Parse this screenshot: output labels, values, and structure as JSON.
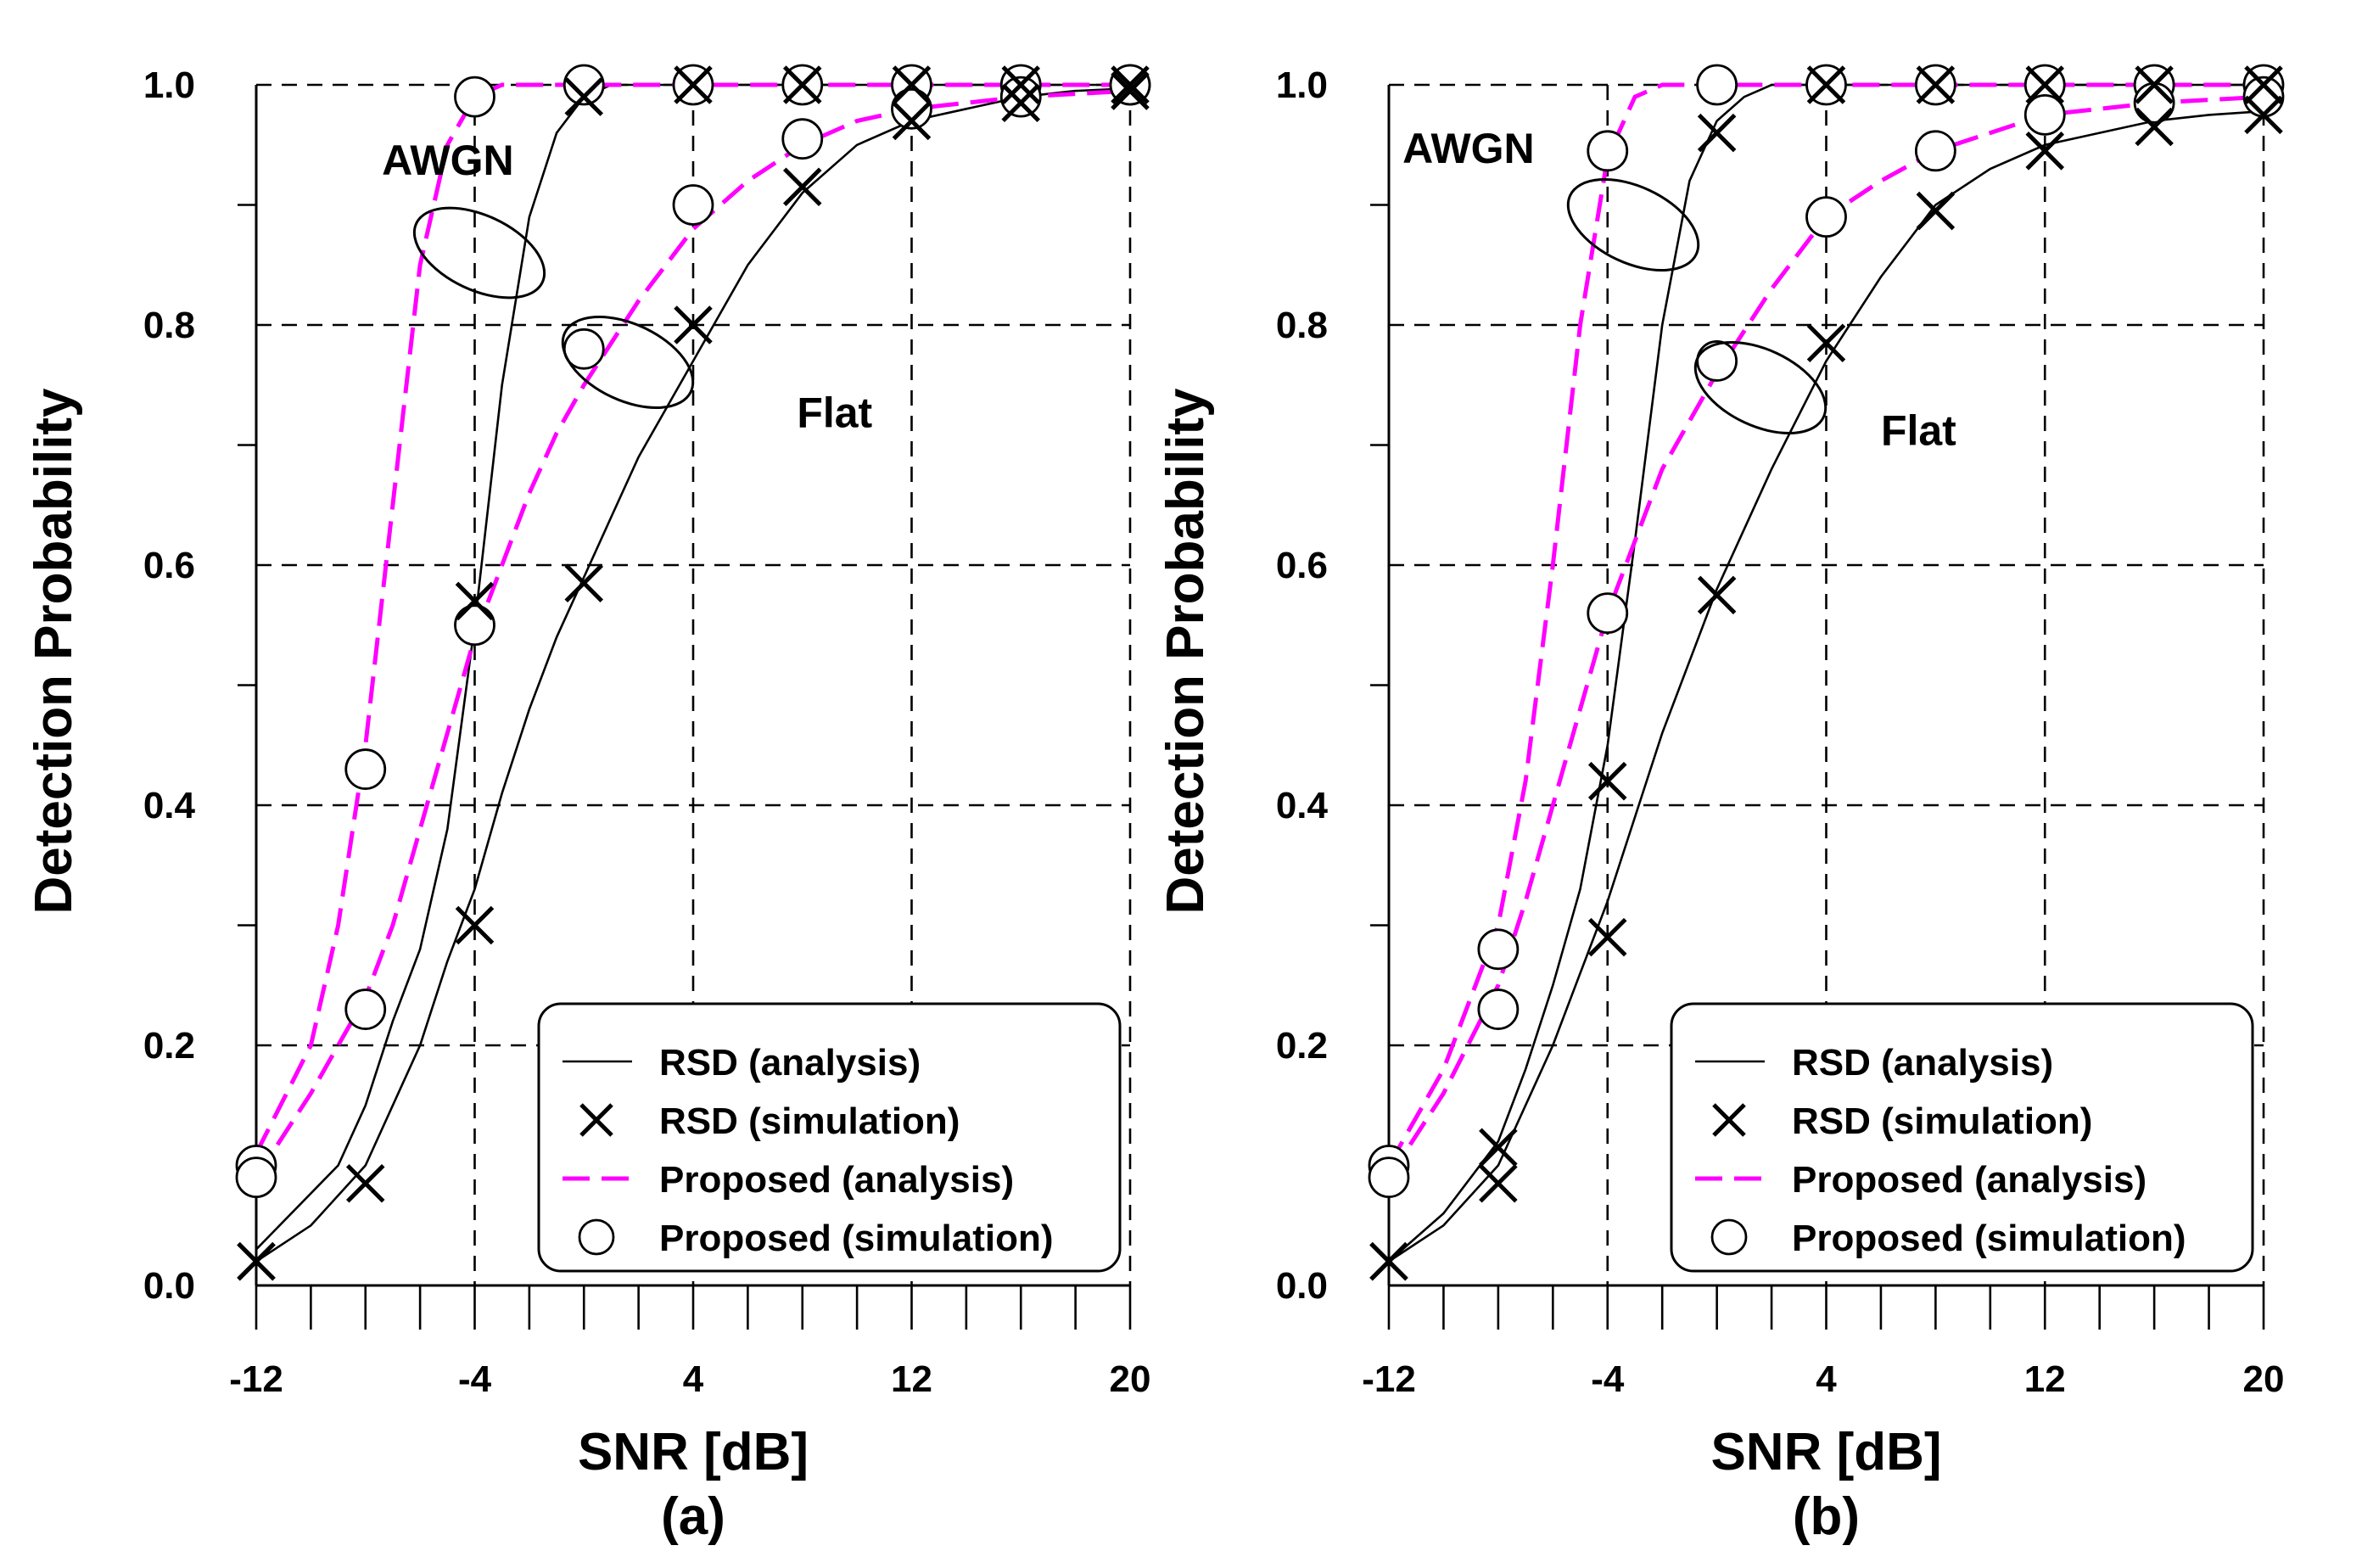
{
  "chart_data": [
    {
      "panel": "(a)",
      "type": "line",
      "xlabel": "SNR [dB]",
      "ylabel": "Detection Probability",
      "xlim": [
        -12,
        20
      ],
      "ylim": [
        0.0,
        1.0
      ],
      "x_ticks": [
        -12,
        -4,
        4,
        12,
        20
      ],
      "x_tick_labels": [
        "-12",
        "-4",
        "4",
        "12",
        "20"
      ],
      "y_ticks": [
        0.0,
        0.2,
        0.4,
        0.6,
        0.8,
        1.0
      ],
      "y_tick_labels": [
        "0.0",
        "0.2",
        "0.4",
        "0.6",
        "0.8",
        "1.0"
      ],
      "grid": true,
      "annotations": [
        {
          "text": "AWGN",
          "x": -7.4,
          "y": 0.925
        },
        {
          "text": "Flat",
          "x": 7.8,
          "y": 0.715
        }
      ],
      "legend": {
        "position": "bottom-right",
        "entries": [
          "RSD (analysis)",
          "RSD (simulation)",
          "Proposed (analysis)",
          "Proposed (simulation)"
        ]
      },
      "series": [
        {
          "name": "RSD (analysis)",
          "group": "AWGN",
          "style": "solid",
          "x": [
            -12,
            -9,
            -8,
            -7,
            -6,
            -5,
            -4,
            -3,
            -2,
            -1,
            0,
            1,
            2,
            4,
            8,
            12,
            16,
            20
          ],
          "y": [
            0.03,
            0.1,
            0.15,
            0.22,
            0.28,
            0.38,
            0.55,
            0.75,
            0.89,
            0.96,
            0.99,
            1.0,
            1.0,
            1.0,
            1.0,
            1.0,
            1.0,
            1.0
          ]
        },
        {
          "name": "RSD (simulation)",
          "group": "AWGN",
          "style": "marker-x",
          "x": [
            -12,
            -4,
            0,
            4,
            8,
            12,
            16,
            20
          ],
          "y": [
            0.02,
            0.57,
            0.99,
            1.0,
            1.0,
            1.0,
            1.0,
            1.0
          ]
        },
        {
          "name": "Proposed (analysis)",
          "group": "AWGN",
          "style": "dashed",
          "x": [
            -12,
            -10,
            -9,
            -8,
            -7,
            -6,
            -5,
            -4,
            -3,
            -2,
            -1,
            0,
            4,
            8,
            12,
            16,
            20
          ],
          "y": [
            0.11,
            0.2,
            0.3,
            0.45,
            0.65,
            0.85,
            0.95,
            0.99,
            1.0,
            1.0,
            1.0,
            1.0,
            1.0,
            1.0,
            1.0,
            1.0,
            1.0
          ]
        },
        {
          "name": "Proposed (simulation)",
          "group": "AWGN",
          "style": "marker-o",
          "x": [
            -12,
            -8,
            -4,
            0,
            4,
            8,
            12,
            16,
            20
          ],
          "y": [
            0.1,
            0.43,
            0.99,
            1.0,
            1.0,
            1.0,
            1.0,
            1.0,
            1.0
          ]
        },
        {
          "name": "RSD (analysis)",
          "group": "Flat",
          "style": "solid",
          "x": [
            -12,
            -10,
            -8,
            -6,
            -5,
            -4,
            -3,
            -2,
            -1,
            0,
            1,
            2,
            4,
            6,
            8,
            10,
            12,
            14,
            16,
            18,
            20
          ],
          "y": [
            0.02,
            0.05,
            0.1,
            0.2,
            0.27,
            0.33,
            0.41,
            0.48,
            0.54,
            0.59,
            0.64,
            0.69,
            0.77,
            0.85,
            0.91,
            0.95,
            0.97,
            0.98,
            0.99,
            0.995,
            0.997
          ]
        },
        {
          "name": "RSD (simulation)",
          "group": "Flat",
          "style": "marker-x",
          "x": [
            -12,
            -8,
            -4,
            0,
            4,
            8,
            12,
            16,
            20
          ],
          "y": [
            0.02,
            0.085,
            0.3,
            0.585,
            0.8,
            0.915,
            0.97,
            0.985,
            0.995
          ]
        },
        {
          "name": "Proposed (analysis)",
          "group": "Flat",
          "style": "dashed",
          "x": [
            -12,
            -10,
            -8,
            -7,
            -6,
            -5,
            -4,
            -3,
            -2,
            -1,
            0,
            2,
            4,
            6,
            8,
            10,
            12,
            16,
            20
          ],
          "y": [
            0.09,
            0.16,
            0.24,
            0.3,
            0.38,
            0.46,
            0.54,
            0.6,
            0.66,
            0.71,
            0.75,
            0.82,
            0.88,
            0.92,
            0.95,
            0.97,
            0.98,
            0.99,
            0.995
          ]
        },
        {
          "name": "Proposed (simulation)",
          "group": "Flat",
          "style": "marker-o",
          "x": [
            -12,
            -8,
            -4,
            0,
            4,
            8,
            12,
            16,
            20
          ],
          "y": [
            0.09,
            0.23,
            0.55,
            0.78,
            0.9,
            0.955,
            0.98,
            0.99,
            1.0
          ]
        }
      ]
    },
    {
      "panel": "(b)",
      "type": "line",
      "xlabel": "SNR [dB]",
      "ylabel": "Detection Probability",
      "xlim": [
        -12,
        20
      ],
      "ylim": [
        0.0,
        1.0
      ],
      "x_ticks": [
        -12,
        -4,
        4,
        12,
        20
      ],
      "x_tick_labels": [
        "-12",
        "-4",
        "4",
        "12",
        "20"
      ],
      "y_ticks": [
        0.0,
        0.2,
        0.4,
        0.6,
        0.8,
        1.0
      ],
      "y_tick_labels": [
        "0.0",
        "0.2",
        "0.4",
        "0.6",
        "0.8",
        "1.0"
      ],
      "grid": true,
      "annotations": [
        {
          "text": "AWGN",
          "x": -11.5,
          "y": 0.935
        },
        {
          "text": "Flat",
          "x": 6.0,
          "y": 0.7
        }
      ],
      "legend": {
        "position": "bottom-right",
        "entries": [
          "RSD (analysis)",
          "RSD (simulation)",
          "Proposed (analysis)",
          "Proposed (simulation)"
        ]
      },
      "series": [
        {
          "name": "RSD (analysis)",
          "group": "AWGN",
          "style": "solid",
          "x": [
            -12,
            -10,
            -8,
            -7,
            -6,
            -5,
            -4,
            -3,
            -2,
            -1,
            0,
            1,
            2,
            4,
            8,
            12,
            16,
            20
          ],
          "y": [
            0.02,
            0.06,
            0.12,
            0.18,
            0.25,
            0.33,
            0.45,
            0.62,
            0.8,
            0.92,
            0.97,
            0.99,
            1.0,
            1.0,
            1.0,
            1.0,
            1.0,
            1.0
          ]
        },
        {
          "name": "RSD (simulation)",
          "group": "AWGN",
          "style": "marker-x",
          "x": [
            -12,
            -8,
            -4,
            0,
            4,
            8,
            12,
            16,
            20
          ],
          "y": [
            0.02,
            0.115,
            0.42,
            0.96,
            1.0,
            1.0,
            1.0,
            1.0,
            1.0
          ]
        },
        {
          "name": "Proposed (analysis)",
          "group": "AWGN",
          "style": "dashed",
          "x": [
            -12,
            -10,
            -9,
            -8,
            -7,
            -6,
            -5,
            -4,
            -3,
            -2,
            -1,
            0,
            4,
            8,
            12,
            16,
            20
          ],
          "y": [
            0.1,
            0.18,
            0.24,
            0.3,
            0.42,
            0.6,
            0.8,
            0.94,
            0.99,
            1.0,
            1.0,
            1.0,
            1.0,
            1.0,
            1.0,
            1.0,
            1.0
          ]
        },
        {
          "name": "Proposed (simulation)",
          "group": "AWGN",
          "style": "marker-o",
          "x": [
            -12,
            -8,
            -4,
            0,
            4,
            8,
            12,
            16,
            20
          ],
          "y": [
            0.1,
            0.28,
            0.945,
            1.0,
            1.0,
            1.0,
            1.0,
            1.0,
            1.0
          ]
        },
        {
          "name": "RSD (analysis)",
          "group": "Flat",
          "style": "solid",
          "x": [
            -12,
            -10,
            -8,
            -6,
            -5,
            -4,
            -3,
            -2,
            -1,
            0,
            2,
            4,
            6,
            8,
            10,
            12,
            14,
            16,
            18,
            20
          ],
          "y": [
            0.02,
            0.05,
            0.1,
            0.2,
            0.26,
            0.32,
            0.39,
            0.46,
            0.52,
            0.58,
            0.68,
            0.77,
            0.84,
            0.9,
            0.93,
            0.95,
            0.96,
            0.97,
            0.975,
            0.978
          ]
        },
        {
          "name": "RSD (simulation)",
          "group": "Flat",
          "style": "marker-x",
          "x": [
            -12,
            -8,
            -4,
            0,
            4,
            8,
            12,
            16,
            20
          ],
          "y": [
            0.02,
            0.085,
            0.29,
            0.575,
            0.785,
            0.895,
            0.945,
            0.965,
            0.975
          ]
        },
        {
          "name": "Proposed (analysis)",
          "group": "Flat",
          "style": "dashed",
          "x": [
            -12,
            -10,
            -8,
            -7,
            -6,
            -5,
            -4,
            -3,
            -2,
            -1,
            0,
            2,
            4,
            6,
            8,
            10,
            12,
            16,
            20
          ],
          "y": [
            0.09,
            0.16,
            0.25,
            0.32,
            0.4,
            0.48,
            0.56,
            0.62,
            0.68,
            0.72,
            0.76,
            0.83,
            0.89,
            0.92,
            0.945,
            0.96,
            0.975,
            0.985,
            0.99
          ]
        },
        {
          "name": "Proposed (simulation)",
          "group": "Flat",
          "style": "marker-o",
          "x": [
            -12,
            -8,
            -4,
            0,
            4,
            8,
            12,
            16,
            20
          ],
          "y": [
            0.09,
            0.23,
            0.56,
            0.77,
            0.89,
            0.945,
            0.975,
            0.985,
            0.99
          ]
        }
      ]
    }
  ],
  "colors": {
    "axes": "#000000",
    "grid": "#000000",
    "rsd": "#000000",
    "proposed": "#ff00ff",
    "background": "#ffffff"
  }
}
